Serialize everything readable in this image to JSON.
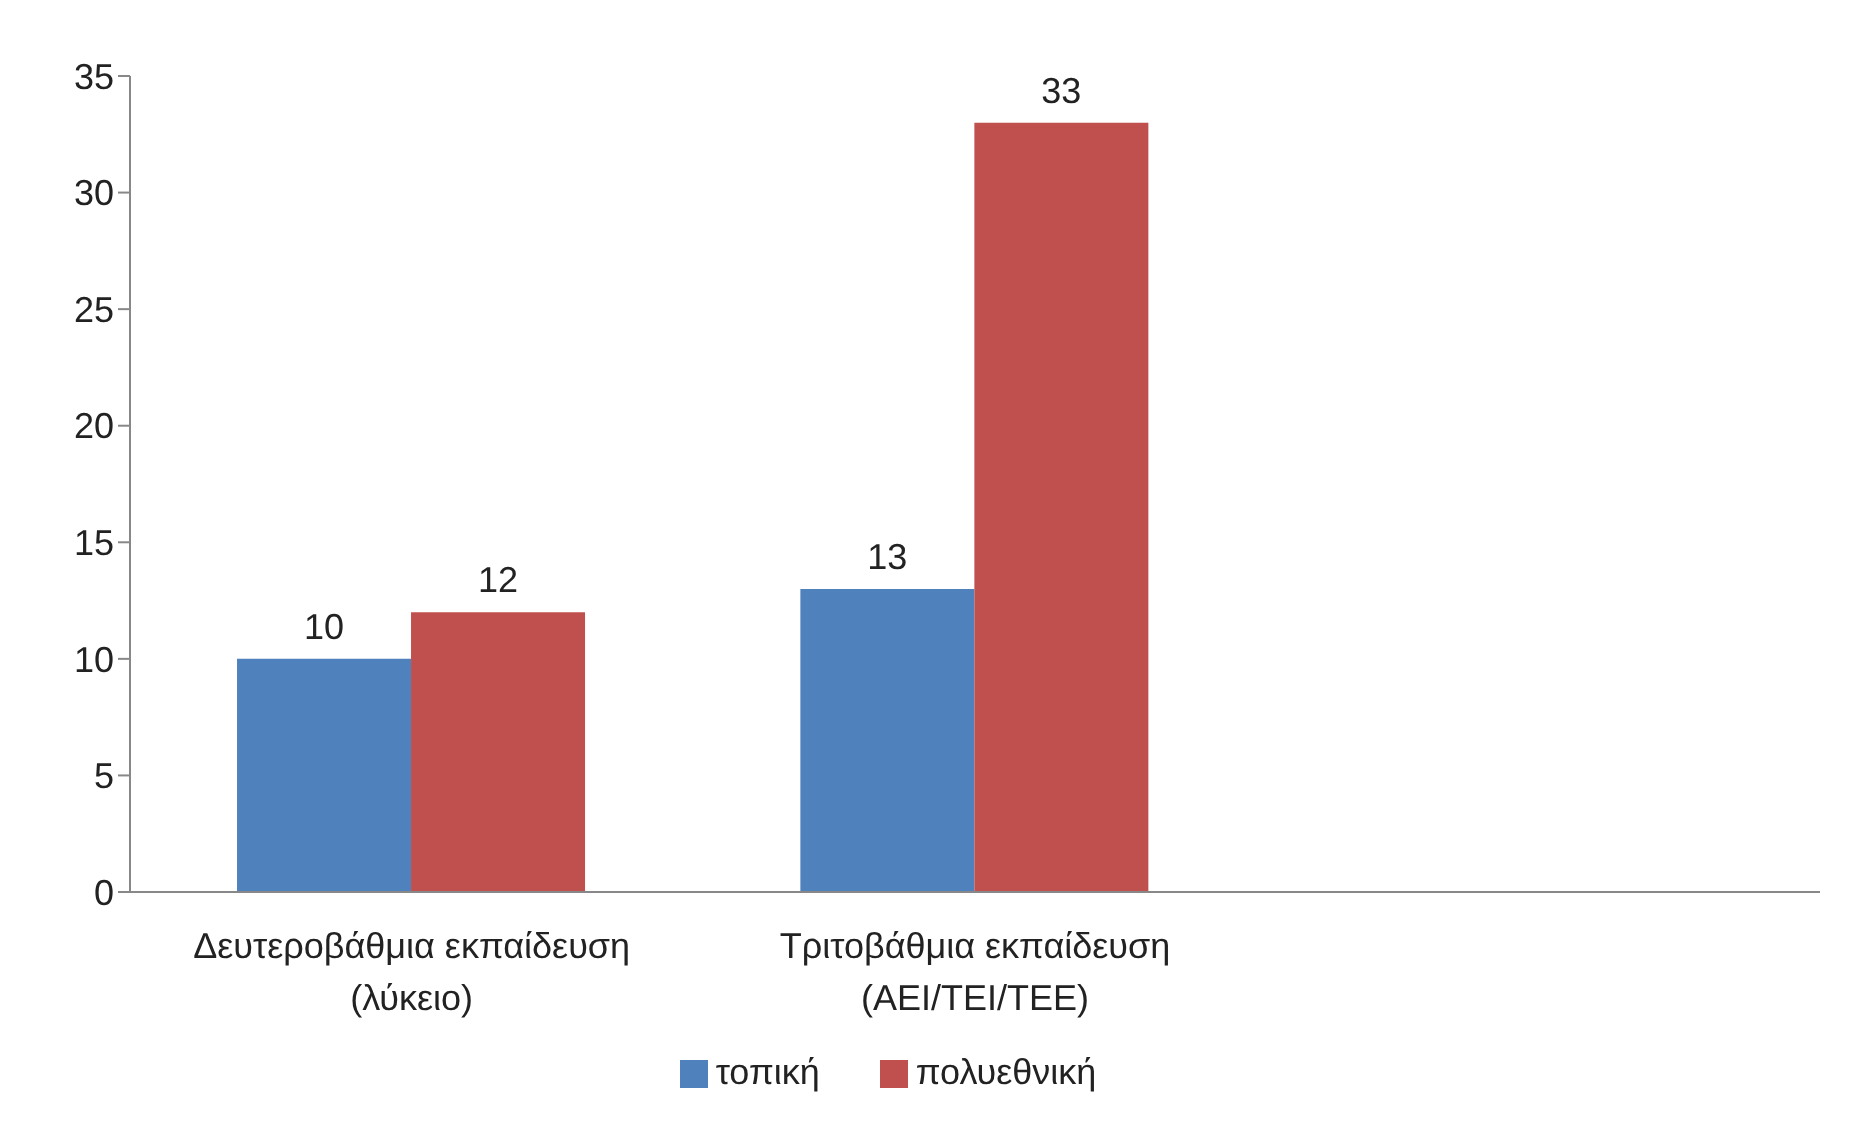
{
  "chart_data": {
    "type": "bar",
    "categories": [
      "Δευτεροβάθμια εκπαίδευση (λύκειο)",
      "Τριτοβάθμια εκπαίδευση (ΑΕΙ/ΤΕΙ/ΤΕΕ)",
      null
    ],
    "series": [
      {
        "name": "τοπική",
        "color": "#4f81bd",
        "values": [
          10,
          13,
          null
        ]
      },
      {
        "name": "πολυεθνική",
        "color": "#c0504d",
        "values": [
          12,
          33,
          null
        ]
      }
    ],
    "ylim": [
      0,
      35
    ],
    "yticks": [
      0,
      5,
      10,
      15,
      20,
      25,
      30,
      35
    ],
    "data_labels": true,
    "legend": "bottom",
    "grid": false
  }
}
